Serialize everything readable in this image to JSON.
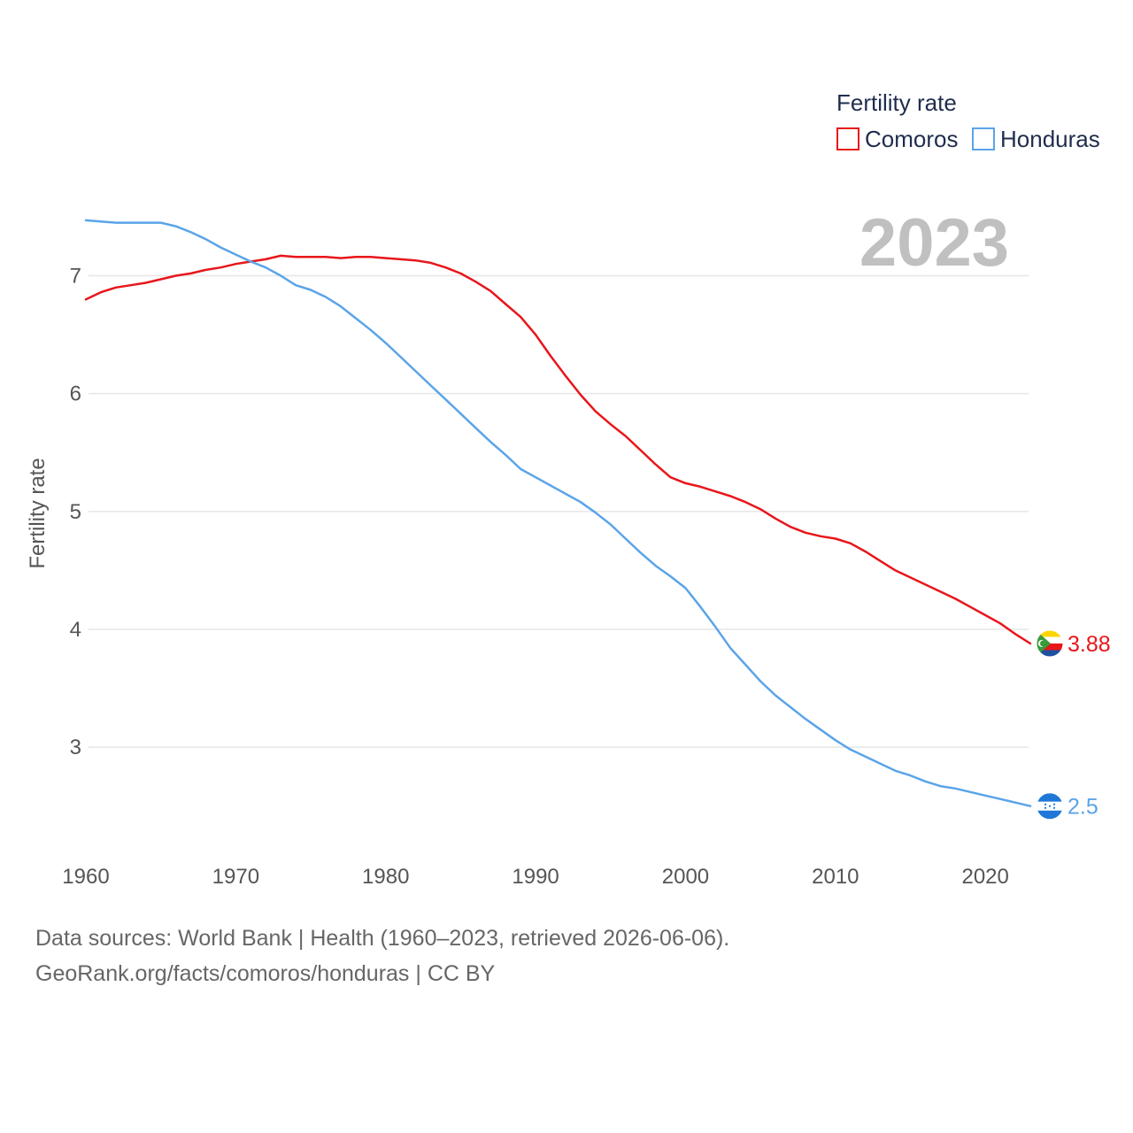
{
  "footer": {
    "line1": "Data sources: World Bank | Health (1960–2023, retrieved 2026-06-06).",
    "line2": "GeoRank.org/facts/comoros/honduras | CC BY"
  },
  "chart_data": {
    "type": "line",
    "title": "",
    "year_label": "2023",
    "legend_title": "Fertility rate",
    "legend_position": "top-right",
    "xlabel": "",
    "ylabel": "Fertility rate",
    "xlim": [
      1960,
      2023
    ],
    "ylim": [
      2.1,
      7.8
    ],
    "x_ticks": [
      1960,
      1970,
      1980,
      1990,
      2000,
      2010,
      2020
    ],
    "y_ticks": [
      3,
      4,
      5,
      6,
      7
    ],
    "grid": true,
    "x": [
      1960,
      1961,
      1962,
      1963,
      1964,
      1965,
      1966,
      1967,
      1968,
      1969,
      1970,
      1971,
      1972,
      1973,
      1974,
      1975,
      1976,
      1977,
      1978,
      1979,
      1980,
      1981,
      1982,
      1983,
      1984,
      1985,
      1986,
      1987,
      1988,
      1989,
      1990,
      1991,
      1992,
      1993,
      1994,
      1995,
      1996,
      1997,
      1998,
      1999,
      2000,
      2001,
      2002,
      2003,
      2004,
      2005,
      2006,
      2007,
      2008,
      2009,
      2010,
      2011,
      2012,
      2013,
      2014,
      2015,
      2016,
      2017,
      2018,
      2019,
      2020,
      2021,
      2022,
      2023
    ],
    "series": [
      {
        "name": "Comoros",
        "color": "#e8161b",
        "end_value_label": "3.88",
        "flag": "comoros-flag",
        "values": [
          6.8,
          6.86,
          6.9,
          6.92,
          6.94,
          6.97,
          7.0,
          7.02,
          7.05,
          7.07,
          7.1,
          7.12,
          7.14,
          7.17,
          7.16,
          7.16,
          7.16,
          7.15,
          7.16,
          7.16,
          7.15,
          7.14,
          7.13,
          7.11,
          7.07,
          7.02,
          6.95,
          6.87,
          6.76,
          6.65,
          6.5,
          6.32,
          6.15,
          5.99,
          5.85,
          5.74,
          5.64,
          5.52,
          5.4,
          5.29,
          5.24,
          5.21,
          5.17,
          5.13,
          5.08,
          5.02,
          4.94,
          4.87,
          4.82,
          4.79,
          4.77,
          4.73,
          4.66,
          4.58,
          4.5,
          4.44,
          4.38,
          4.32,
          4.26,
          4.19,
          4.12,
          4.05,
          3.96,
          3.88
        ]
      },
      {
        "name": "Honduras",
        "color": "#5ba4e8",
        "end_value_label": "2.5",
        "flag": "honduras-flag",
        "values": [
          7.47,
          7.46,
          7.45,
          7.45,
          7.45,
          7.45,
          7.42,
          7.37,
          7.31,
          7.24,
          7.18,
          7.12,
          7.07,
          7.0,
          6.92,
          6.88,
          6.82,
          6.74,
          6.64,
          6.54,
          6.43,
          6.31,
          6.19,
          6.07,
          5.95,
          5.83,
          5.71,
          5.59,
          5.48,
          5.36,
          5.29,
          5.22,
          5.15,
          5.08,
          4.99,
          4.89,
          4.77,
          4.65,
          4.54,
          4.45,
          4.35,
          4.19,
          4.02,
          3.84,
          3.7,
          3.56,
          3.44,
          3.34,
          3.24,
          3.15,
          3.06,
          2.98,
          2.92,
          2.86,
          2.8,
          2.76,
          2.71,
          2.67,
          2.65,
          2.62,
          2.59,
          2.56,
          2.53,
          2.5
        ]
      }
    ]
  }
}
